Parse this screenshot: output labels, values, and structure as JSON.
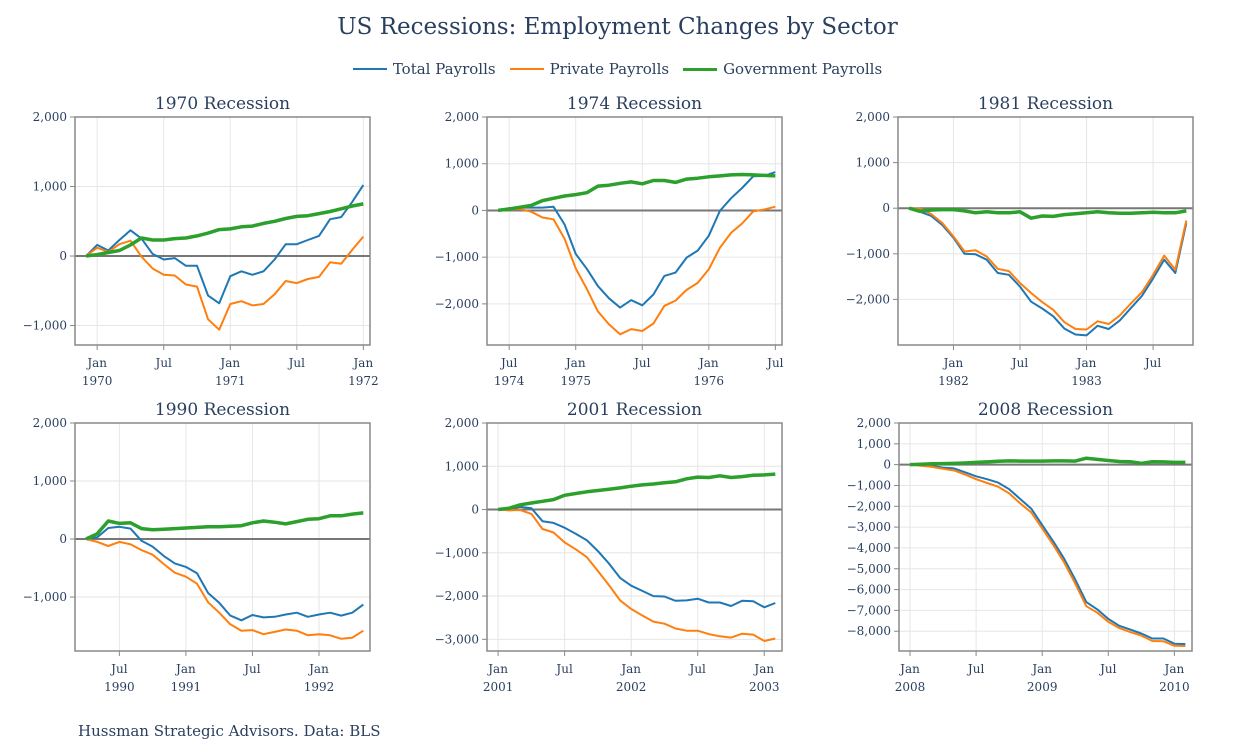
{
  "title": "US Recessions: Employment Changes by Sector",
  "legend": [
    {
      "name": "Total Payrolls",
      "color": "#1f77b4"
    },
    {
      "name": "Private Payrolls",
      "color": "#ff7f0e"
    },
    {
      "name": "Government Payrolls",
      "color": "#2ca02c"
    }
  ],
  "footer": "Hussman Strategic Advisors. Data: BLS",
  "chart_data": [
    {
      "type": "line",
      "title": "1970 Recession",
      "ylim": [
        -1280,
        2000
      ],
      "yticks": [
        -1000,
        0,
        1000,
        2000
      ],
      "x": [
        "1969-12",
        "1970-01",
        "1970-02",
        "1970-03",
        "1970-04",
        "1970-05",
        "1970-06",
        "1970-07",
        "1970-08",
        "1970-09",
        "1970-10",
        "1970-11",
        "1970-12",
        "1971-01",
        "1971-02",
        "1971-03",
        "1971-04",
        "1971-05",
        "1971-06",
        "1971-07",
        "1971-08",
        "1971-09",
        "1971-10",
        "1971-11",
        "1971-12",
        "1972-01"
      ],
      "xticks": [
        {
          "date": "1970-01",
          "label": [
            "Jan",
            "1970"
          ]
        },
        {
          "date": "1970-07",
          "label": [
            "Jul",
            ""
          ]
        },
        {
          "date": "1971-01",
          "label": [
            "Jan",
            "1971"
          ]
        },
        {
          "date": "1971-07",
          "label": [
            "Jul",
            ""
          ]
        },
        {
          "date": "1972-01",
          "label": [
            "Jan",
            "1972"
          ]
        }
      ],
      "series": [
        {
          "name": "Total Payrolls",
          "values": [
            0,
            160,
            80,
            230,
            370,
            250,
            30,
            -50,
            -30,
            -140,
            -140,
            -570,
            -680,
            -290,
            -220,
            -270,
            -220,
            -50,
            170,
            170,
            230,
            290,
            530,
            560,
            780,
            1020
          ]
        },
        {
          "name": "Private Payrolls",
          "values": [
            0,
            120,
            60,
            170,
            220,
            -10,
            -180,
            -270,
            -280,
            -410,
            -440,
            -910,
            -1060,
            -690,
            -650,
            -710,
            -690,
            -550,
            -360,
            -390,
            -330,
            -300,
            -90,
            -110,
            90,
            280
          ]
        },
        {
          "name": "Government Payrolls",
          "values": [
            0,
            20,
            50,
            80,
            160,
            260,
            230,
            230,
            250,
            260,
            290,
            330,
            380,
            390,
            420,
            430,
            470,
            500,
            540,
            570,
            580,
            610,
            640,
            680,
            720,
            750
          ]
        }
      ]
    },
    {
      "type": "line",
      "title": "1974 Recession",
      "ylim": [
        -2880,
        2000
      ],
      "yticks": [
        -2000,
        -1000,
        0,
        1000,
        2000
      ],
      "x": [
        "1974-06",
        "1974-07",
        "1974-08",
        "1974-09",
        "1974-10",
        "1974-11",
        "1974-12",
        "1975-01",
        "1975-02",
        "1975-03",
        "1975-04",
        "1975-05",
        "1975-06",
        "1975-07",
        "1975-08",
        "1975-09",
        "1975-10",
        "1975-11",
        "1975-12",
        "1976-01",
        "1976-02",
        "1976-03",
        "1976-04",
        "1976-05",
        "1976-06",
        "1976-07"
      ],
      "xticks": [
        {
          "date": "1974-07",
          "label": [
            "Jul",
            "1974"
          ]
        },
        {
          "date": "1975-01",
          "label": [
            "Jan",
            "1975"
          ]
        },
        {
          "date": "1975-07",
          "label": [
            "Jul",
            ""
          ]
        },
        {
          "date": "1976-01",
          "label": [
            "Jan",
            "1976"
          ]
        },
        {
          "date": "1976-07",
          "label": [
            "Jul",
            ""
          ]
        }
      ],
      "series": [
        {
          "name": "Total Payrolls",
          "values": [
            0,
            50,
            60,
            60,
            60,
            80,
            -300,
            -930,
            -1250,
            -1620,
            -1880,
            -2080,
            -1920,
            -2030,
            -1800,
            -1400,
            -1330,
            -1010,
            -860,
            -540,
            -10,
            260,
            480,
            730,
            740,
            820
          ]
        },
        {
          "name": "Private Payrolls",
          "values": [
            0,
            20,
            30,
            -30,
            -150,
            -190,
            -610,
            -1240,
            -1680,
            -2160,
            -2440,
            -2650,
            -2540,
            -2580,
            -2420,
            -2040,
            -1930,
            -1700,
            -1550,
            -1260,
            -800,
            -480,
            -280,
            -20,
            20,
            80
          ]
        },
        {
          "name": "Government Payrolls",
          "values": [
            0,
            30,
            70,
            110,
            210,
            260,
            310,
            340,
            380,
            520,
            540,
            580,
            610,
            570,
            640,
            640,
            600,
            670,
            690,
            720,
            740,
            760,
            770,
            760,
            750,
            740
          ]
        }
      ]
    },
    {
      "type": "line",
      "title": "1981 Recession",
      "ylim": [
        -3000,
        2000
      ],
      "yticks": [
        -2000,
        -1000,
        0,
        1000,
        2000
      ],
      "x": [
        "1981-09",
        "1981-10",
        "1981-11",
        "1981-12",
        "1982-01",
        "1982-02",
        "1982-03",
        "1982-04",
        "1982-05",
        "1982-06",
        "1982-07",
        "1982-08",
        "1982-09",
        "1982-10",
        "1982-11",
        "1982-12",
        "1983-01",
        "1983-02",
        "1983-03",
        "1983-04",
        "1983-05",
        "1983-06",
        "1983-07",
        "1983-08",
        "1983-09",
        "1983-10"
      ],
      "xticks": [
        {
          "date": "1982-01",
          "label": [
            "Jan",
            "1982"
          ]
        },
        {
          "date": "1982-07",
          "label": [
            "Jul",
            ""
          ]
        },
        {
          "date": "1983-01",
          "label": [
            "Jan",
            "1983"
          ]
        },
        {
          "date": "1983-07",
          "label": [
            "Jul",
            ""
          ]
        }
      ],
      "series": [
        {
          "name": "Total Payrolls",
          "values": [
            0,
            -80,
            -170,
            -370,
            -650,
            -1000,
            -1010,
            -1130,
            -1420,
            -1460,
            -1720,
            -2050,
            -2200,
            -2370,
            -2640,
            -2770,
            -2790,
            -2580,
            -2650,
            -2460,
            -2190,
            -1920,
            -1540,
            -1130,
            -1420,
            -330
          ]
        },
        {
          "name": "Private Payrolls",
          "values": [
            0,
            -10,
            -130,
            -330,
            -620,
            -950,
            -920,
            -1060,
            -1330,
            -1380,
            -1640,
            -1860,
            -2060,
            -2230,
            -2500,
            -2650,
            -2660,
            -2480,
            -2540,
            -2350,
            -2090,
            -1840,
            -1460,
            -1040,
            -1350,
            -270
          ]
        },
        {
          "name": "Government Payrolls",
          "values": [
            0,
            -70,
            -40,
            -30,
            -30,
            -60,
            -100,
            -80,
            -100,
            -100,
            -80,
            -220,
            -170,
            -180,
            -140,
            -120,
            -100,
            -80,
            -100,
            -110,
            -110,
            -100,
            -90,
            -100,
            -100,
            -60
          ]
        }
      ]
    },
    {
      "type": "line",
      "title": "1990 Recession",
      "ylim": [
        -1930,
        2000
      ],
      "yticks": [
        -1000,
        0,
        1000,
        2000
      ],
      "x": [
        "1990-04",
        "1990-05",
        "1990-06",
        "1990-07",
        "1990-08",
        "1990-09",
        "1990-10",
        "1990-11",
        "1990-12",
        "1991-01",
        "1991-02",
        "1991-03",
        "1991-04",
        "1991-05",
        "1991-06",
        "1991-07",
        "1991-08",
        "1991-09",
        "1991-10",
        "1991-11",
        "1991-12",
        "1992-01",
        "1992-02",
        "1992-03",
        "1992-04",
        "1992-05"
      ],
      "xticks": [
        {
          "date": "1990-07",
          "label": [
            "Jul",
            "1990"
          ]
        },
        {
          "date": "1991-01",
          "label": [
            "Jan",
            "1991"
          ]
        },
        {
          "date": "1991-07",
          "label": [
            "Jul",
            ""
          ]
        },
        {
          "date": "1992-01",
          "label": [
            "Jan",
            "1992"
          ]
        }
      ],
      "series": [
        {
          "name": "Total Payrolls",
          "values": [
            0,
            30,
            190,
            210,
            180,
            -30,
            -130,
            -290,
            -420,
            -480,
            -590,
            -930,
            -1100,
            -1320,
            -1400,
            -1310,
            -1350,
            -1340,
            -1300,
            -1270,
            -1340,
            -1300,
            -1270,
            -1320,
            -1270,
            -1130
          ]
        },
        {
          "name": "Private Payrolls",
          "values": [
            0,
            -50,
            -120,
            -50,
            -90,
            -190,
            -270,
            -430,
            -580,
            -650,
            -770,
            -1090,
            -1270,
            -1470,
            -1580,
            -1570,
            -1640,
            -1600,
            -1560,
            -1580,
            -1660,
            -1640,
            -1660,
            -1720,
            -1700,
            -1580
          ]
        },
        {
          "name": "Government Payrolls",
          "values": [
            0,
            90,
            310,
            270,
            280,
            180,
            160,
            170,
            180,
            190,
            200,
            210,
            210,
            220,
            230,
            280,
            310,
            290,
            260,
            300,
            340,
            350,
            400,
            400,
            430,
            450
          ]
        }
      ]
    },
    {
      "type": "line",
      "title": "2001 Recession",
      "ylim": [
        -3270,
        2000
      ],
      "yticks": [
        -3000,
        -2000,
        -1000,
        0,
        1000,
        2000
      ],
      "x": [
        "2001-01",
        "2001-02",
        "2001-03",
        "2001-04",
        "2001-05",
        "2001-06",
        "2001-07",
        "2001-08",
        "2001-09",
        "2001-10",
        "2001-11",
        "2001-12",
        "2002-01",
        "2002-02",
        "2002-03",
        "2002-04",
        "2002-05",
        "2002-06",
        "2002-07",
        "2002-08",
        "2002-09",
        "2002-10",
        "2002-11",
        "2002-12",
        "2003-01",
        "2003-02"
      ],
      "xticks": [
        {
          "date": "2001-01",
          "label": [
            "Jan",
            "2001"
          ]
        },
        {
          "date": "2001-07",
          "label": [
            "Jul",
            ""
          ]
        },
        {
          "date": "2002-01",
          "label": [
            "Jan",
            "2002"
          ]
        },
        {
          "date": "2002-07",
          "label": [
            "Jul",
            ""
          ]
        },
        {
          "date": "2003-01",
          "label": [
            "Jan",
            "2003"
          ]
        }
      ],
      "series": [
        {
          "name": "Total Payrolls",
          "values": [
            0,
            20,
            60,
            30,
            -270,
            -310,
            -420,
            -560,
            -710,
            -960,
            -1250,
            -1580,
            -1760,
            -1880,
            -2000,
            -2010,
            -2110,
            -2100,
            -2060,
            -2150,
            -2150,
            -2230,
            -2110,
            -2120,
            -2260,
            -2160
          ]
        },
        {
          "name": "Private Payrolls",
          "values": [
            0,
            -20,
            -10,
            -100,
            -450,
            -530,
            -760,
            -920,
            -1100,
            -1420,
            -1750,
            -2100,
            -2300,
            -2450,
            -2590,
            -2640,
            -2750,
            -2800,
            -2800,
            -2880,
            -2930,
            -2960,
            -2870,
            -2890,
            -3040,
            -2980
          ]
        },
        {
          "name": "Government Payrolls",
          "values": [
            0,
            30,
            110,
            150,
            190,
            230,
            330,
            370,
            410,
            440,
            470,
            500,
            540,
            570,
            590,
            620,
            640,
            710,
            750,
            740,
            780,
            740,
            760,
            790,
            800,
            820
          ]
        }
      ]
    },
    {
      "type": "line",
      "title": "2008 Recession",
      "ylim": [
        -8950,
        2000
      ],
      "yticks": [
        -8000,
        -7000,
        -6000,
        -5000,
        -4000,
        -3000,
        -2000,
        -1000,
        0,
        1000,
        2000
      ],
      "x": [
        "2008-01",
        "2008-02",
        "2008-03",
        "2008-04",
        "2008-05",
        "2008-06",
        "2008-07",
        "2008-08",
        "2008-09",
        "2008-10",
        "2008-11",
        "2008-12",
        "2009-01",
        "2009-02",
        "2009-03",
        "2009-04",
        "2009-05",
        "2009-06",
        "2009-07",
        "2009-08",
        "2009-09",
        "2009-10",
        "2009-11",
        "2009-12",
        "2010-01",
        "2010-02"
      ],
      "xticks": [
        {
          "date": "2008-01",
          "label": [
            "Jan",
            "2008"
          ]
        },
        {
          "date": "2008-07",
          "label": [
            "Jul",
            ""
          ]
        },
        {
          "date": "2009-01",
          "label": [
            "Jan",
            "2009"
          ]
        },
        {
          "date": "2009-07",
          "label": [
            "Jul",
            ""
          ]
        },
        {
          "date": "2010-01",
          "label": [
            "Jan",
            "2010"
          ]
        }
      ],
      "series": [
        {
          "name": "Total Payrolls",
          "values": [
            0,
            -20,
            -60,
            -140,
            -180,
            -370,
            -560,
            -700,
            -860,
            -1180,
            -1650,
            -2110,
            -2900,
            -3680,
            -4520,
            -5520,
            -6600,
            -6950,
            -7410,
            -7740,
            -7920,
            -8110,
            -8350,
            -8350,
            -8600,
            -8620
          ]
        },
        {
          "name": "Private Payrolls",
          "values": [
            0,
            -50,
            -110,
            -200,
            -280,
            -480,
            -700,
            -880,
            -1060,
            -1380,
            -1860,
            -2290,
            -3060,
            -3850,
            -4700,
            -5710,
            -6800,
            -7110,
            -7550,
            -7850,
            -8040,
            -8210,
            -8470,
            -8480,
            -8700,
            -8710
          ]
        },
        {
          "name": "Government Payrolls",
          "values": [
            0,
            20,
            40,
            50,
            60,
            80,
            110,
            130,
            160,
            180,
            170,
            170,
            170,
            180,
            180,
            170,
            310,
            250,
            200,
            150,
            140,
            60,
            140,
            130,
            110,
            110
          ]
        }
      ]
    }
  ]
}
